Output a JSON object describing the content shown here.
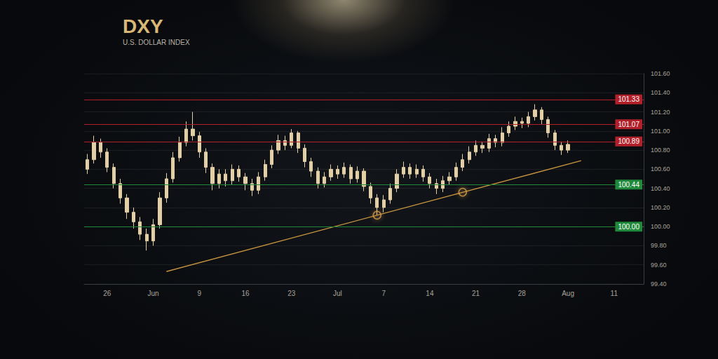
{
  "chart_data": {
    "type": "candlestick",
    "title": "DXY",
    "subtitle": "U.S. DOLLAR INDEX",
    "categories": [
      null,
      null,
      null,
      "26",
      null,
      null,
      null,
      null,
      null,
      null,
      "Jun",
      null,
      null,
      null,
      null,
      null,
      null,
      "9",
      null,
      null,
      null,
      null,
      null,
      null,
      "16",
      null,
      null,
      null,
      null,
      null,
      null,
      "23",
      null,
      null,
      null,
      null,
      null,
      null,
      "Jul",
      null,
      null,
      null,
      null,
      null,
      null,
      "7",
      null,
      null,
      null,
      null,
      null,
      null,
      "14",
      null,
      null,
      null,
      null,
      null,
      null,
      "21",
      null,
      null,
      null,
      null,
      null,
      null,
      "28",
      null,
      null,
      null,
      null,
      null,
      null,
      "Aug",
      null,
      null,
      null,
      null,
      null,
      null,
      "11",
      null,
      null,
      null,
      null
    ],
    "ylim": [
      99.4,
      101.6
    ],
    "yticks": [
      {
        "value": 99.4,
        "label": "99.40"
      },
      {
        "value": 99.6,
        "label": "99.60"
      },
      {
        "value": 99.8,
        "label": "99.80"
      },
      {
        "value": 100,
        "label": "100.00"
      },
      {
        "value": 100.2,
        "label": "100.20"
      },
      {
        "value": 100.4,
        "label": "100.40"
      },
      {
        "value": 100.6,
        "label": "100.60"
      },
      {
        "value": 100.8,
        "label": "100.80"
      },
      {
        "value": 101,
        "label": "101.00"
      },
      {
        "value": 101.2,
        "label": "101.20"
      },
      {
        "value": 101.4,
        "label": "101.40"
      },
      {
        "value": 101.6,
        "label": "101.60"
      }
    ],
    "grid": true,
    "levels": [
      {
        "value": 101.33,
        "label": "101.33",
        "color": "#b3202a",
        "line_style": "solid"
      },
      {
        "value": 101.07,
        "label": "101.07",
        "color": "#b3202a",
        "line_style": "solid"
      },
      {
        "value": 100.89,
        "label": "100.89",
        "color": "#b3202a",
        "line_style": "solid"
      },
      {
        "value": 100.44,
        "label": "100.44",
        "color": "#1f8a3a",
        "line_style": "solid"
      },
      {
        "value": 100,
        "label": "100.00",
        "color": "#1f8a3a",
        "line_style": "solid"
      }
    ],
    "series": [
      {
        "type": "candlestick",
        "color": "#e3cfa4",
        "open": [
          100.6,
          100.7,
          100.88,
          100.78,
          100.62,
          100.45,
          100.3,
          100.15,
          100.05,
          99.92,
          99.85,
          100.02,
          100.3,
          100.5,
          100.72,
          100.88,
          101.02,
          100.95,
          100.78,
          100.62,
          100.45,
          100.55,
          100.48,
          100.6,
          100.52,
          100.45,
          100.38,
          100.52,
          100.65,
          100.8,
          100.9,
          100.85,
          100.98,
          100.82,
          100.68,
          100.58,
          100.45,
          100.52,
          100.6,
          100.55,
          100.62,
          100.5,
          100.58,
          100.42,
          100.3,
          100.2,
          100.28,
          100.4,
          100.55,
          100.62,
          100.55,
          100.6,
          100.52,
          100.45,
          100.4,
          100.48,
          100.52,
          100.62,
          100.7,
          100.78,
          100.85,
          100.82,
          100.92,
          100.88,
          100.98,
          101.05,
          101.1,
          101.08,
          101.15,
          101.22,
          101.12,
          100.98,
          100.85,
          100.8,
          null,
          null,
          null,
          null,
          null,
          null,
          null,
          null,
          null,
          null,
          null
        ],
        "high": [
          100.76,
          100.95,
          100.92,
          100.82,
          100.66,
          100.5,
          100.34,
          100.2,
          100.1,
          99.98,
          100.08,
          100.36,
          100.56,
          100.78,
          100.94,
          101.1,
          101.2,
          100.99,
          100.82,
          100.66,
          100.6,
          100.6,
          100.65,
          100.64,
          100.56,
          100.5,
          100.57,
          100.7,
          100.85,
          100.96,
          100.95,
          101.02,
          101.0,
          100.86,
          100.72,
          100.62,
          100.57,
          100.65,
          100.64,
          100.67,
          100.65,
          100.63,
          100.61,
          100.46,
          100.34,
          100.33,
          100.45,
          100.6,
          100.68,
          100.66,
          100.65,
          100.64,
          100.56,
          100.5,
          100.53,
          100.57,
          100.67,
          100.76,
          100.84,
          100.9,
          100.89,
          100.97,
          100.96,
          101.04,
          101.1,
          101.15,
          101.14,
          101.2,
          101.28,
          101.25,
          101.15,
          101.01,
          100.89,
          100.9,
          null,
          null,
          null,
          null,
          null,
          null,
          null,
          null,
          null,
          null,
          null
        ],
        "low": [
          100.55,
          100.66,
          100.72,
          100.57,
          100.4,
          100.24,
          100.08,
          99.98,
          99.86,
          99.75,
          99.8,
          99.98,
          100.25,
          100.46,
          100.68,
          100.84,
          100.9,
          100.72,
          100.56,
          100.38,
          100.4,
          100.42,
          100.44,
          100.47,
          100.38,
          100.32,
          100.34,
          100.48,
          100.61,
          100.76,
          100.8,
          100.82,
          100.77,
          100.62,
          100.52,
          100.4,
          100.41,
          100.48,
          100.5,
          100.51,
          100.45,
          100.46,
          100.37,
          100.24,
          100.12,
          100.15,
          100.24,
          100.36,
          100.51,
          100.5,
          100.51,
          100.47,
          100.4,
          100.34,
          100.36,
          100.44,
          100.48,
          100.58,
          100.66,
          100.74,
          100.77,
          100.78,
          100.83,
          100.84,
          100.94,
          101.01,
          101.03,
          101.04,
          101.11,
          101.07,
          100.93,
          100.8,
          100.75,
          100.77,
          null,
          null,
          null,
          null,
          null,
          null,
          null,
          null,
          null,
          null,
          null
        ],
        "close": [
          100.7,
          100.88,
          100.78,
          100.62,
          100.45,
          100.3,
          100.15,
          100.05,
          99.92,
          99.85,
          100.02,
          100.3,
          100.5,
          100.72,
          100.88,
          101.02,
          100.95,
          100.78,
          100.62,
          100.45,
          100.55,
          100.48,
          100.6,
          100.52,
          100.45,
          100.38,
          100.52,
          100.65,
          100.8,
          100.9,
          100.85,
          100.98,
          100.82,
          100.68,
          100.58,
          100.45,
          100.52,
          100.6,
          100.55,
          100.62,
          100.5,
          100.58,
          100.42,
          100.3,
          100.2,
          100.28,
          100.4,
          100.55,
          100.62,
          100.55,
          100.6,
          100.52,
          100.45,
          100.4,
          100.48,
          100.52,
          100.62,
          100.7,
          100.78,
          100.85,
          100.82,
          100.92,
          100.88,
          100.98,
          101.05,
          101.1,
          101.08,
          101.15,
          101.22,
          101.12,
          100.98,
          100.85,
          100.8,
          100.86,
          null,
          null,
          null,
          null,
          null,
          null,
          null,
          null,
          null,
          null,
          null
        ]
      },
      {
        "type": "line",
        "color": "#c8963e",
        "line_style": "solid",
        "values": [
          null,
          null,
          null,
          null,
          null,
          null,
          null,
          null,
          null,
          null,
          null,
          null,
          99.53,
          null,
          null,
          null,
          null,
          null,
          null,
          null,
          null,
          null,
          null,
          null,
          null,
          null,
          null,
          null,
          null,
          null,
          null,
          null,
          null,
          null,
          null,
          null,
          null,
          null,
          null,
          null,
          null,
          null,
          null,
          null,
          null,
          null,
          null,
          null,
          null,
          null,
          null,
          null,
          null,
          null,
          null,
          null,
          null,
          null,
          null,
          null,
          null,
          null,
          null,
          null,
          null,
          null,
          null,
          null,
          null,
          null,
          null,
          null,
          null,
          null,
          null,
          100.69,
          null,
          null,
          null,
          null,
          null,
          null,
          null,
          null,
          null
        ]
      },
      {
        "type": "scatter",
        "color": "#e0a24a",
        "marker": "circle",
        "values": [
          null,
          null,
          null,
          null,
          null,
          null,
          null,
          null,
          null,
          null,
          null,
          null,
          null,
          null,
          null,
          null,
          null,
          null,
          null,
          null,
          null,
          null,
          null,
          null,
          null,
          null,
          null,
          null,
          null,
          null,
          null,
          null,
          null,
          null,
          null,
          null,
          null,
          null,
          null,
          null,
          null,
          null,
          null,
          null,
          100.12,
          null,
          null,
          null,
          null,
          null,
          null,
          null,
          null,
          null,
          null,
          null,
          null,
          100.36,
          null,
          null,
          null,
          null,
          null,
          null,
          null,
          null,
          null,
          null,
          null,
          null,
          null,
          null,
          null,
          null,
          null,
          null,
          null,
          null,
          null,
          null,
          null,
          null,
          null,
          null,
          null
        ]
      }
    ]
  }
}
